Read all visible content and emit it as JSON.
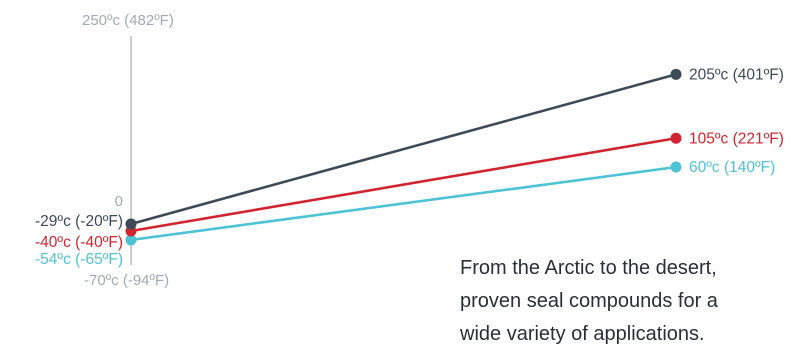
{
  "chart_data": {
    "type": "line",
    "x": [
      "start",
      "end"
    ],
    "ylim": [
      -70,
      250
    ],
    "y_tick_labels": [
      {
        "value": 250,
        "label": "250ºc (482ºF)"
      },
      {
        "value": 0,
        "label": "0"
      },
      {
        "value": -70,
        "label": "-70ºc (-94ºF)"
      }
    ],
    "series": [
      {
        "color": "#3e4a56",
        "values": [
          -29,
          205
        ],
        "start_label": "-29ºc (-20ºF)",
        "end_label": "205ºc (401ºF)"
      },
      {
        "color": "#d0252f",
        "values": [
          -40,
          105
        ],
        "start_label": "-40ºc (-40ºF)",
        "end_label": "105ºc (221ºF)"
      },
      {
        "color": "#4ec3d6",
        "values": [
          -54,
          60
        ],
        "start_label": "-54ºc (-65ºF)",
        "end_label": "60ºc (140ºF)"
      }
    ],
    "grid": false,
    "legend": "none"
  },
  "caption": {
    "lines": [
      "From the Arctic to the desert,",
      "proven seal compounds for a",
      "wide variety of applications."
    ]
  }
}
